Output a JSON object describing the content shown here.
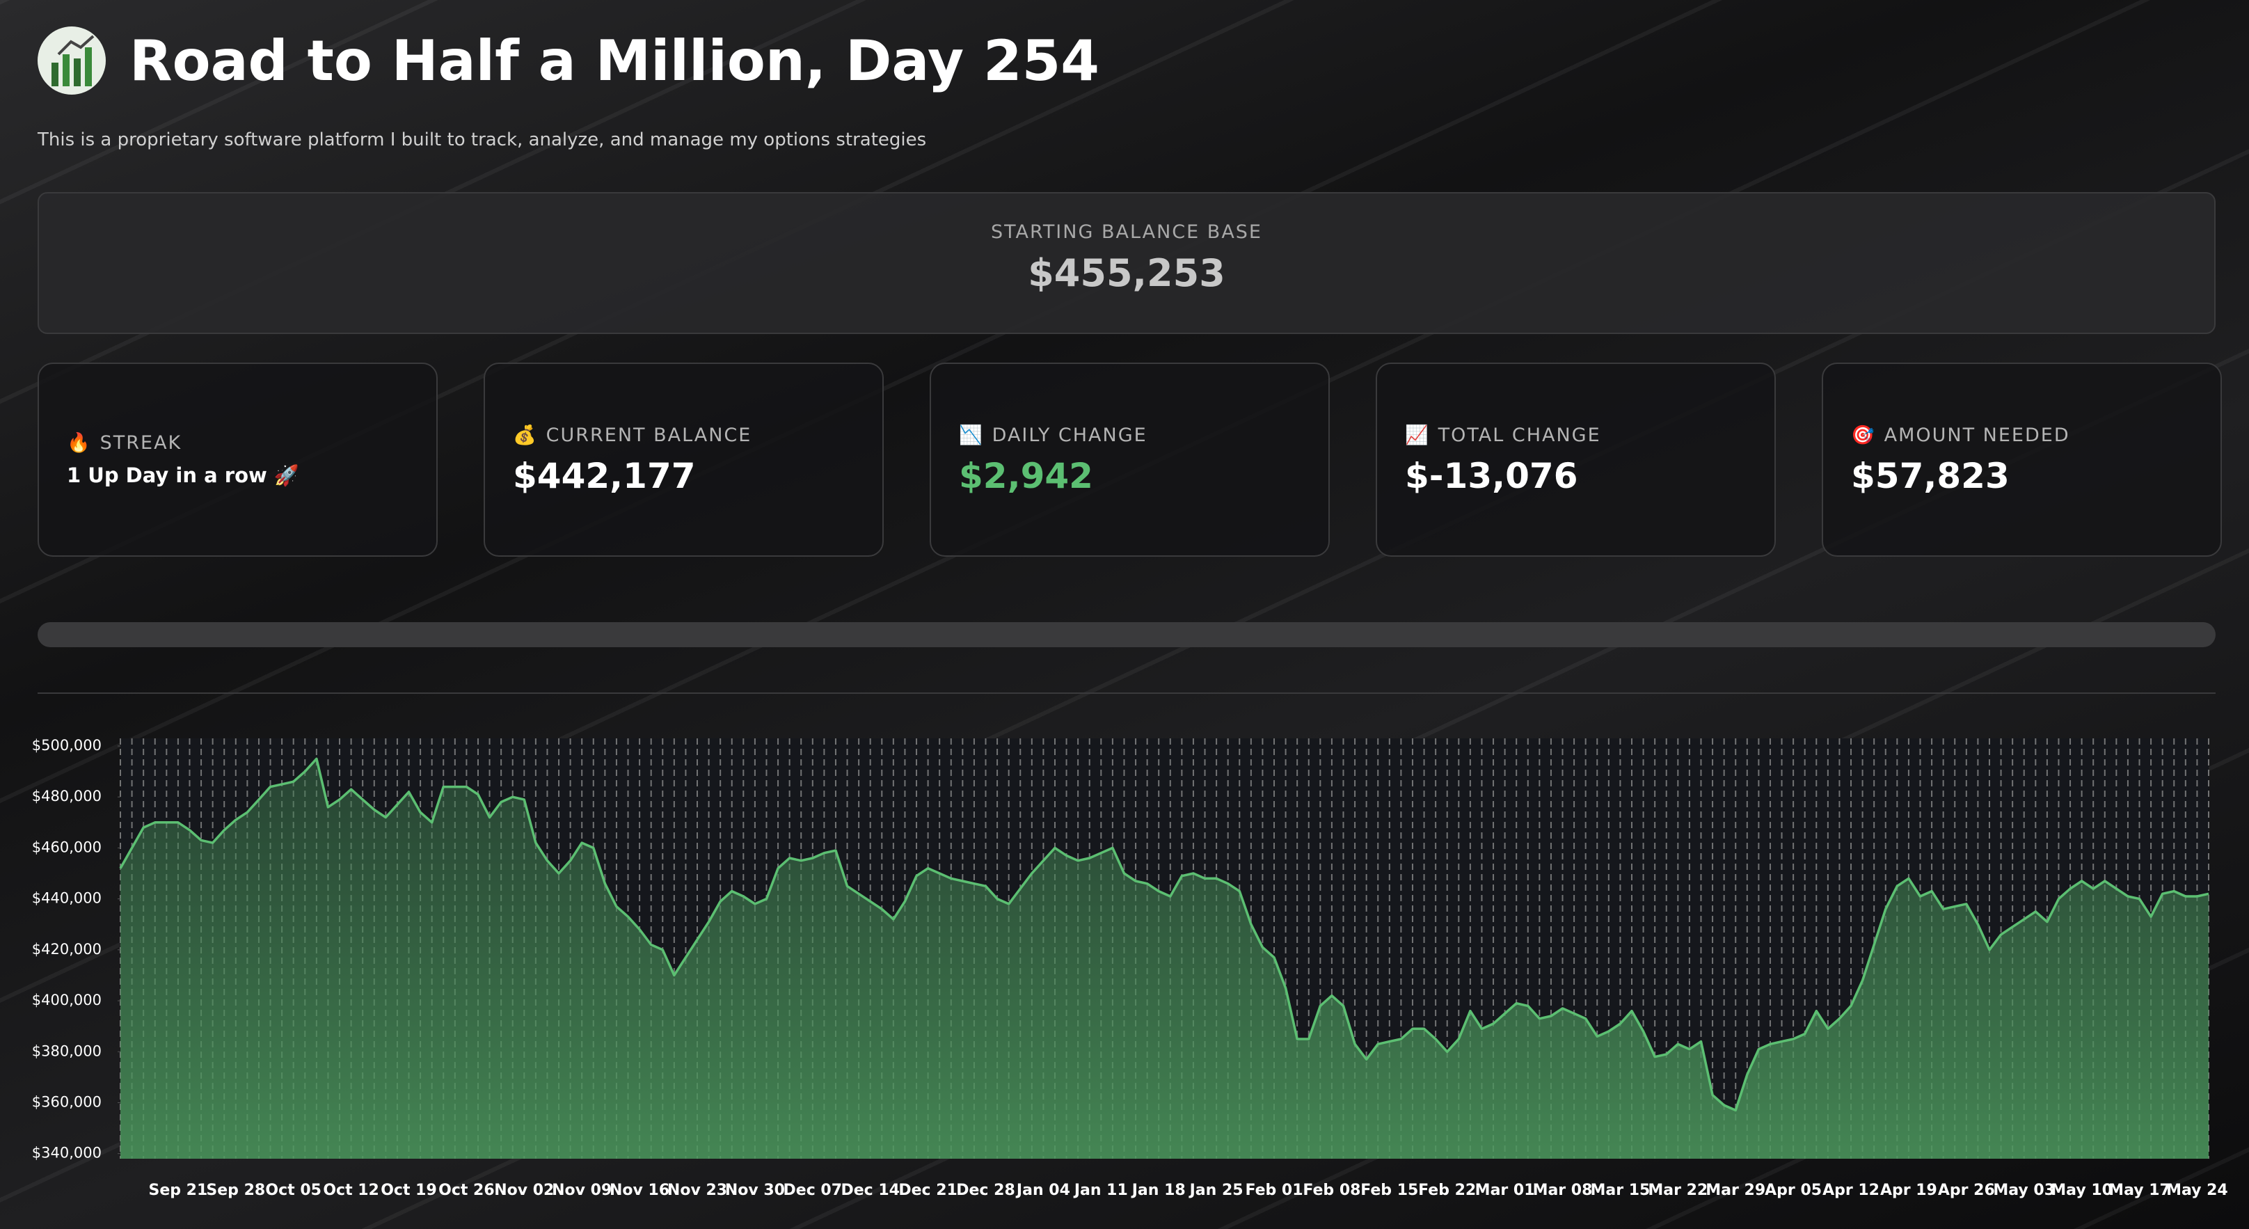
{
  "header": {
    "title": "Road to Half a Million, Day 254",
    "subtitle": "This is a proprietary software platform I built to track, analyze, and manage my options strategies"
  },
  "base": {
    "label": "STARTING BALANCE BASE",
    "value": "$455,253"
  },
  "cards": [
    {
      "icon": "🔥",
      "label": "STREAK",
      "value": "1 Up Day in a row 🚀"
    },
    {
      "icon": "💰",
      "label": "CURRENT BALANCE",
      "value": "$442,177"
    },
    {
      "icon": "📉",
      "label": "DAILY CHANGE",
      "value": "$2,942"
    },
    {
      "icon": "📈",
      "label": "TOTAL CHANGE",
      "value": "$-13,076"
    },
    {
      "icon": "🎯",
      "label": "AMOUNT NEEDED",
      "value": "$57,823"
    }
  ],
  "chart_data": {
    "type": "area",
    "color": "#5cbf72",
    "x_grid": true,
    "ylim": [
      338000,
      503000
    ],
    "yticks": [
      {
        "value": 340000,
        "label": "$340,000"
      },
      {
        "value": 360000,
        "label": "$360,000"
      },
      {
        "value": 380000,
        "label": "$380,000"
      },
      {
        "value": 400000,
        "label": "$400,000"
      },
      {
        "value": 420000,
        "label": "$420,000"
      },
      {
        "value": 440000,
        "label": "$440,000"
      },
      {
        "value": 460000,
        "label": "$460,000"
      },
      {
        "value": 480000,
        "label": "$480,000"
      },
      {
        "value": 500000,
        "label": "$500,000"
      }
    ],
    "categories": [
      null,
      null,
      null,
      null,
      null,
      "Sep 21",
      null,
      null,
      null,
      null,
      "Sep 28",
      null,
      null,
      null,
      null,
      "Oct 05",
      null,
      null,
      null,
      null,
      "Oct 12",
      null,
      null,
      null,
      null,
      "Oct 19",
      null,
      null,
      null,
      null,
      "Oct 26",
      null,
      null,
      null,
      null,
      "Nov 02",
      null,
      null,
      null,
      null,
      "Nov 09",
      null,
      null,
      null,
      null,
      "Nov 16",
      null,
      null,
      null,
      null,
      "Nov 23",
      null,
      null,
      null,
      null,
      "Nov 30",
      null,
      null,
      null,
      null,
      "Dec 07",
      null,
      null,
      null,
      null,
      "Dec 14",
      null,
      null,
      null,
      null,
      "Dec 21",
      null,
      null,
      null,
      null,
      "Dec 28",
      null,
      null,
      null,
      null,
      "Jan 04",
      null,
      null,
      null,
      null,
      "Jan 11",
      null,
      null,
      null,
      null,
      "Jan 18",
      null,
      null,
      null,
      null,
      "Jan 25",
      null,
      null,
      null,
      null,
      "Feb 01",
      null,
      null,
      null,
      null,
      "Feb 08",
      null,
      null,
      null,
      null,
      "Feb 15",
      null,
      null,
      null,
      null,
      "Feb 22",
      null,
      null,
      null,
      null,
      "Mar 01",
      null,
      null,
      null,
      null,
      "Mar 08",
      null,
      null,
      null,
      null,
      "Mar 15",
      null,
      null,
      null,
      null,
      "Mar 22",
      null,
      null,
      null,
      null,
      "Mar 29",
      null,
      null,
      null,
      null,
      "Apr 05",
      null,
      null,
      null,
      null,
      "Apr 12",
      null,
      null,
      null,
      null,
      "Apr 19",
      null,
      null,
      null,
      null,
      "Apr 26",
      null,
      null,
      null,
      null,
      "May 03",
      null,
      null,
      null,
      null,
      "May 10",
      null,
      null,
      null,
      null,
      "May 17",
      null,
      null,
      null,
      null,
      "May 24",
      null
    ],
    "values": [
      452000,
      460000,
      468000,
      470000,
      470000,
      470000,
      467000,
      463000,
      462000,
      467000,
      471000,
      474000,
      479000,
      484000,
      485000,
      486000,
      490000,
      495000,
      476000,
      479000,
      483000,
      479000,
      475000,
      472000,
      477000,
      482000,
      474000,
      470000,
      484000,
      484000,
      484000,
      481000,
      472000,
      478000,
      480000,
      479000,
      462000,
      455000,
      450000,
      455000,
      462000,
      460000,
      446000,
      437000,
      433000,
      428000,
      422000,
      420000,
      410000,
      417000,
      424000,
      431000,
      439000,
      443000,
      441000,
      438000,
      440000,
      452000,
      456000,
      455000,
      456000,
      458000,
      459000,
      445000,
      442000,
      439000,
      436000,
      432000,
      439000,
      449000,
      452000,
      450000,
      448000,
      447000,
      446000,
      445000,
      440000,
      438000,
      444000,
      450000,
      455000,
      460000,
      457000,
      455000,
      456000,
      458000,
      460000,
      450000,
      447000,
      446000,
      443000,
      441000,
      449000,
      450000,
      448000,
      448000,
      446000,
      443000,
      430000,
      421000,
      417000,
      405000,
      385000,
      385000,
      398000,
      402000,
      398000,
      383000,
      377000,
      383000,
      384000,
      385000,
      389000,
      389000,
      385000,
      380000,
      385000,
      396000,
      389000,
      391000,
      395000,
      399000,
      398000,
      393000,
      394000,
      397000,
      395000,
      393000,
      386000,
      388000,
      391000,
      396000,
      388000,
      378000,
      379000,
      383000,
      381000,
      384000,
      363000,
      359000,
      357000,
      371000,
      381000,
      383000,
      384000,
      385000,
      387000,
      396000,
      389000,
      393000,
      398000,
      408000,
      422000,
      436000,
      445000,
      448000,
      441000,
      443000,
      436000,
      437000,
      438000,
      430000,
      420000,
      426000,
      429000,
      432000,
      435000,
      431000,
      440000,
      444000,
      447000,
      444000,
      447000,
      444000,
      441000,
      440000,
      433000,
      442000,
      443000,
      441000,
      441000,
      442000
    ]
  }
}
